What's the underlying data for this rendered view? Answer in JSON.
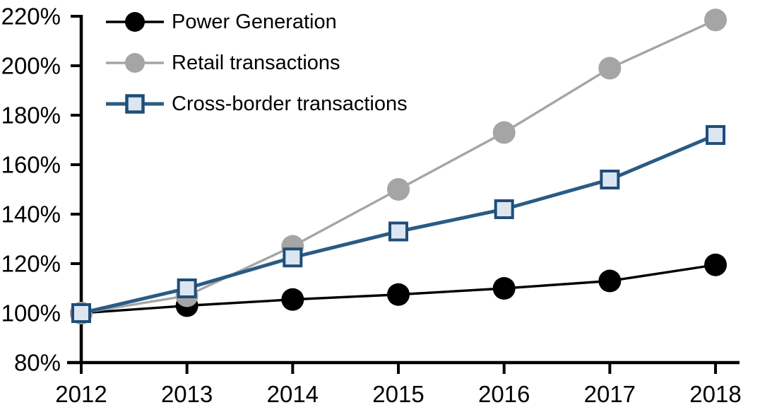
{
  "chart_data": {
    "type": "line",
    "title": "",
    "xlabel": "",
    "ylabel": "",
    "x": [
      2012,
      2013,
      2014,
      2015,
      2016,
      2017,
      2018
    ],
    "x_tick_labels": [
      "2012",
      "2013",
      "2014",
      "2015",
      "2016",
      "2017",
      "2018"
    ],
    "y_axis": {
      "min": 80,
      "max": 220,
      "step": 20,
      "format": "percent"
    },
    "y_tick_labels": [
      "80%",
      "100%",
      "120%",
      "140%",
      "160%",
      "180%",
      "200%",
      "220%"
    ],
    "ylim": [
      80,
      220
    ],
    "grid": false,
    "legend_position": "top-left-inside",
    "axis_color": "#000000",
    "text_color": "#000000",
    "background_color": "#ffffff",
    "series": [
      {
        "name": "Power Generation",
        "values": [
          100,
          103,
          105.5,
          107.5,
          110,
          113,
          119.5
        ],
        "line_color": "#000000",
        "line_width": 3.4,
        "marker": "circle",
        "marker_fill": "#000000",
        "marker_stroke": "#000000"
      },
      {
        "name": "Retail transactions",
        "values": [
          100,
          107,
          127,
          150,
          173,
          199,
          218.5
        ],
        "line_color": "#A5A5A5",
        "line_width": 3.4,
        "marker": "circle",
        "marker_fill": "#A5A5A5",
        "marker_stroke": "#A5A5A5"
      },
      {
        "name": "Cross-border transactions",
        "values": [
          100,
          110,
          122.5,
          133,
          142,
          154,
          172
        ],
        "line_color": "#2A5B84",
        "line_width": 5,
        "marker": "square",
        "marker_fill": "#DCE6F1",
        "marker_stroke": "#1F4E79"
      }
    ]
  }
}
